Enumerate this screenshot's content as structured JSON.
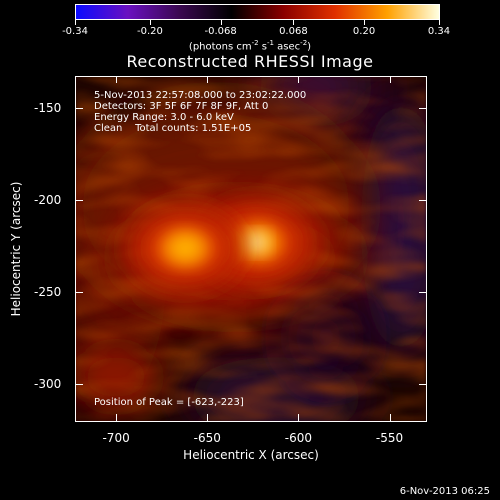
{
  "colorbar": {
    "tick_labels": [
      "-0.34",
      "-0.20",
      "-0.068",
      "0.068",
      "0.20",
      "0.34"
    ],
    "tick_values": [
      -0.34,
      -0.2,
      -0.068,
      0.068,
      0.2,
      0.34
    ],
    "range": [
      -0.34,
      0.34
    ],
    "units_prefix": "(photons cm",
    "units_exp1": "-2",
    "units_mid1": " s",
    "units_exp2": "-1",
    "units_mid2": " asec",
    "units_exp3": "-2",
    "units_suffix": ")",
    "colors": [
      "#0a0aff",
      "#6a10c0",
      "#3a0850",
      "#000000",
      "#8a0000",
      "#e03000",
      "#ffa000",
      "#ffffe0"
    ]
  },
  "image": {
    "title": "Reconstructed RHESSI Image",
    "time_range": "5-Nov-2013 22:57:08.000 to 23:02:22.000",
    "detectors": "Detectors: 3F 5F 6F 7F 8F 9F, Att 0",
    "energy_range": "Energy Range: 3.0 - 6.0 keV",
    "clean_label": "Clean",
    "total_counts": "Total counts: 1.51E+05",
    "peak_position": "Position of Peak = [-623,-223]"
  },
  "axes": {
    "xlabel": "Heliocentric X (arcsec)",
    "ylabel": "Heliocentric Y (arcsec)",
    "xlim": [
      -722,
      -530
    ],
    "ylim": [
      -320,
      -133
    ],
    "xticks": [
      -700,
      -650,
      -600,
      -550
    ],
    "xtick_labels": [
      "-700",
      "-650",
      "-600",
      "-550"
    ],
    "yticks": [
      -150,
      -200,
      -250,
      -300
    ],
    "ytick_labels": [
      "-150",
      "-200",
      "-250",
      "-300"
    ]
  },
  "sources": [
    {
      "x": -623,
      "y": -223,
      "peak": 0.34
    },
    {
      "x": -662,
      "y": -226,
      "peak": 0.28
    }
  ],
  "timestamp": "6-Nov-2013 06:25"
}
